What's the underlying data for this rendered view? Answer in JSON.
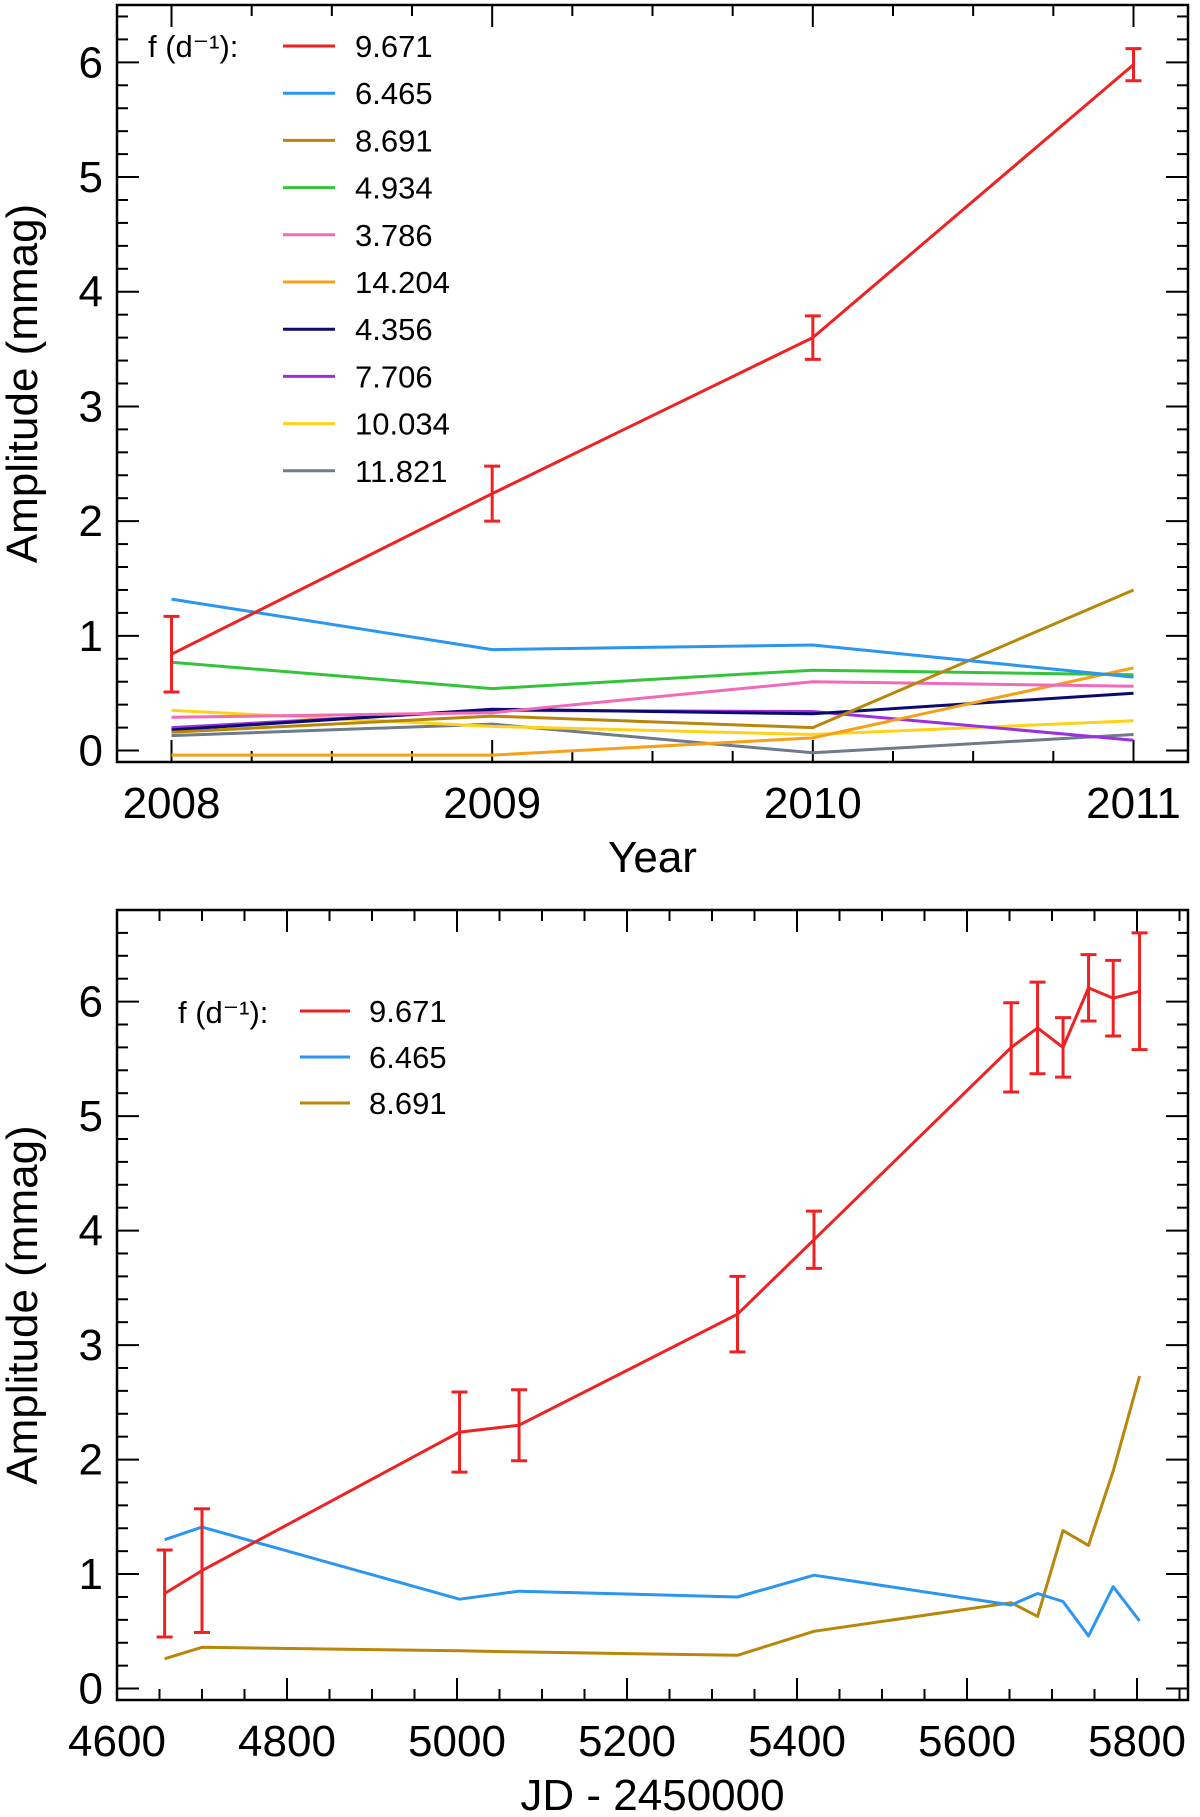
{
  "chart_data": [
    {
      "type": "line",
      "xlabel": "Year",
      "ylabel": "Amplitude (mmag)",
      "xlim": [
        2007.83,
        2011.17
      ],
      "ylim": [
        -0.1,
        6.5
      ],
      "xticks": [
        2008,
        2009,
        2010,
        2011
      ],
      "yticks": [
        0,
        1,
        2,
        3,
        4,
        5,
        6
      ],
      "legend_title": "f (d⁻¹):",
      "legend_position": "top-left",
      "x": [
        2008,
        2009,
        2010,
        2011
      ],
      "series": [
        {
          "name": "9.671",
          "color": "#ee2222",
          "values": [
            0.84,
            2.24,
            3.6,
            5.98
          ],
          "errors": [
            0.33,
            0.24,
            0.19,
            0.14
          ]
        },
        {
          "name": "6.465",
          "color": "#2a96f0",
          "values": [
            1.32,
            0.88,
            0.92,
            0.64
          ]
        },
        {
          "name": "8.691",
          "color": "#b8860b",
          "values": [
            0.16,
            0.3,
            0.2,
            1.4
          ]
        },
        {
          "name": "4.934",
          "color": "#34c43c",
          "values": [
            0.77,
            0.54,
            0.7,
            0.66
          ]
        },
        {
          "name": "3.786",
          "color": "#f06ab8",
          "values": [
            0.29,
            0.33,
            0.6,
            0.56
          ]
        },
        {
          "name": "14.204",
          "color": "#f5a018",
          "values": [
            -0.04,
            -0.04,
            0.11,
            0.72
          ]
        },
        {
          "name": "4.356",
          "color": "#0b0b6e",
          "values": [
            0.18,
            0.36,
            0.32,
            0.5
          ]
        },
        {
          "name": "7.706",
          "color": "#9b30e0",
          "values": [
            0.2,
            0.35,
            0.34,
            0.09
          ]
        },
        {
          "name": "10.034",
          "color": "#ffd21a",
          "values": [
            0.35,
            0.21,
            0.14,
            0.26
          ]
        },
        {
          "name": "11.821",
          "color": "#6f7a8a",
          "values": [
            0.13,
            0.23,
            -0.02,
            0.14
          ]
        }
      ]
    },
    {
      "type": "line",
      "xlabel": "JD - 2450000",
      "ylabel": "Amplitude (mmag)",
      "xlim": [
        4600,
        5860
      ],
      "ylim": [
        -0.1,
        6.8
      ],
      "xticks": [
        4600,
        4800,
        5000,
        5200,
        5400,
        5600,
        5800
      ],
      "yticks": [
        0,
        1,
        2,
        3,
        4,
        5,
        6
      ],
      "legend_title": "f (d⁻¹):",
      "legend_position": "top-left",
      "series": [
        {
          "name": "9.671",
          "color": "#ee2222",
          "x": [
            4656,
            4700,
            5003,
            5073,
            5330,
            5420,
            5652,
            5683,
            5713,
            5743,
            5772,
            5803
          ],
          "values": [
            0.83,
            1.03,
            2.24,
            2.3,
            3.27,
            3.92,
            5.6,
            5.77,
            5.6,
            6.12,
            6.03,
            6.09
          ],
          "errors": [
            0.38,
            0.54,
            0.35,
            0.31,
            0.33,
            0.25,
            0.39,
            0.4,
            0.26,
            0.29,
            0.33,
            0.51
          ]
        },
        {
          "name": "6.465",
          "color": "#2a96f0",
          "x": [
            4656,
            4700,
            5003,
            5073,
            5330,
            5420,
            5652,
            5683,
            5713,
            5743,
            5772,
            5803
          ],
          "values": [
            1.3,
            1.41,
            0.78,
            0.85,
            0.8,
            0.99,
            0.73,
            0.83,
            0.76,
            0.46,
            0.89,
            0.59
          ]
        },
        {
          "name": "8.691",
          "color": "#b8860b",
          "x": [
            4656,
            4700,
            5003,
            5073,
            5330,
            5420,
            5652,
            5683,
            5713,
            5743,
            5772,
            5803
          ],
          "values": [
            0.26,
            0.36,
            0.33,
            0.32,
            0.29,
            0.5,
            0.75,
            0.63,
            1.38,
            1.25,
            1.9,
            2.73
          ]
        }
      ]
    }
  ]
}
